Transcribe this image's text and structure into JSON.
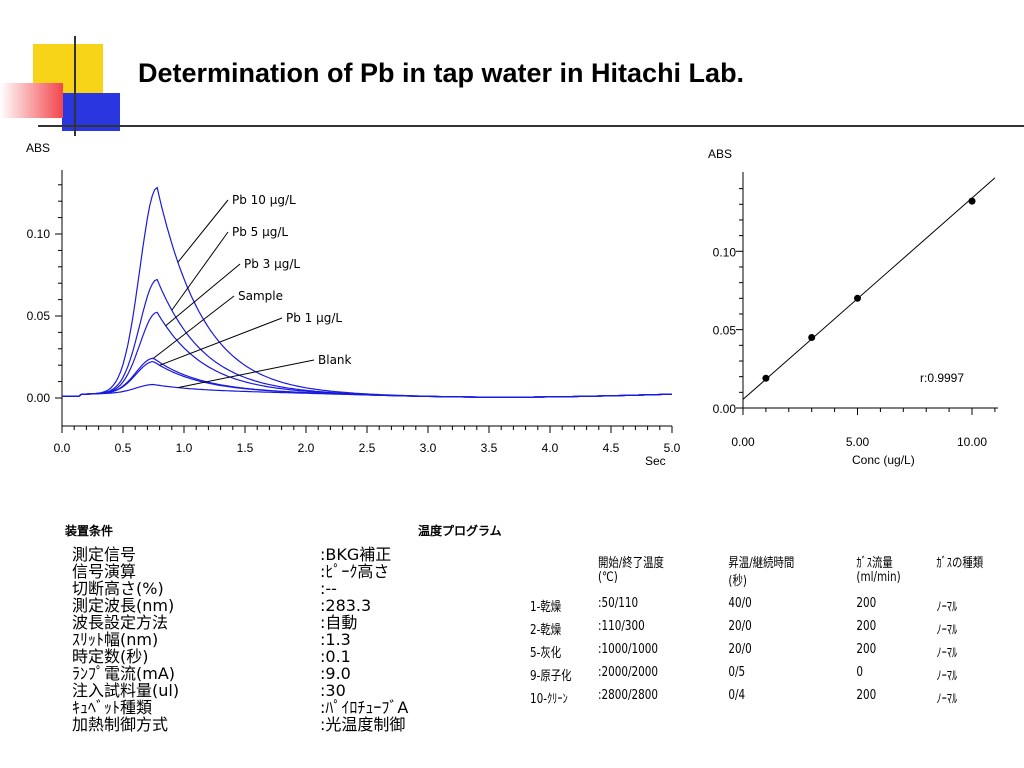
{
  "slide_title": "Determination of Pb in tap water in Hitachi Lab.",
  "colors": {
    "curve": "#1a1add",
    "accent_yellow": "#f7d417",
    "accent_red": "#f2464c",
    "accent_blue": "#2a37e0",
    "rule": "#333333"
  },
  "chart_data": [
    {
      "type": "line",
      "ylabel": "ABS",
      "xlabel": "Sec",
      "xlim": [
        0,
        5.0
      ],
      "ylim": [
        0,
        0.13
      ],
      "x_ticks": [
        "0.0",
        "0.5",
        "1.0",
        "1.5",
        "2.0",
        "2.5",
        "3.0",
        "3.5",
        "4.0",
        "4.5",
        "5.0"
      ],
      "y_ticks": [
        "0.10",
        "0.05",
        "0.00"
      ],
      "series": [
        {
          "name": "Pb 10 μg/L",
          "peak_time": 0.78,
          "peak_abs": 0.127
        },
        {
          "name": "Pb  5 μg/L",
          "peak_time": 0.78,
          "peak_abs": 0.071
        },
        {
          "name": "Pb 3 μg/L",
          "peak_time": 0.78,
          "peak_abs": 0.051
        },
        {
          "name": "Sample",
          "peak_time": 0.75,
          "peak_abs": 0.023
        },
        {
          "name": "Pb 1 μg/L",
          "peak_time": 0.75,
          "peak_abs": 0.021
        },
        {
          "name": "Blank",
          "peak_time": 0.75,
          "peak_abs": 0.007
        }
      ]
    },
    {
      "type": "scatter",
      "ylabel": "ABS",
      "xlabel": "Conc (ug/L)",
      "xlim": [
        0,
        11
      ],
      "ylim": [
        0,
        0.14
      ],
      "x_ticks": [
        "0.00",
        "5.00",
        "10.00"
      ],
      "y_ticks": [
        "0.10",
        "0.05",
        "0.00"
      ],
      "points": [
        {
          "x": 1,
          "y": 0.019
        },
        {
          "x": 3,
          "y": 0.045
        },
        {
          "x": 5,
          "y": 0.07
        },
        {
          "x": 10,
          "y": 0.132
        }
      ],
      "fit_line": {
        "intercept": 0.0055,
        "slope": 0.01285
      },
      "annotation": "r:0.9997"
    }
  ],
  "conditions": {
    "heading": "装置条件",
    "rows": [
      {
        "key": "測定信号",
        "value": ":BKG補正"
      },
      {
        "key": "信号演算",
        "value": ":ﾋﾟｰｸ高さ"
      },
      {
        "key": "切断高さ(%)",
        "value": ":--"
      },
      {
        "key": "測定波長(nm)",
        "value": ":283.3"
      },
      {
        "key": "波長設定方法",
        "value": ":自動"
      },
      {
        "key": "ｽﾘｯﾄ幅(nm)",
        "value": ":1.3"
      },
      {
        "key": "時定数(秒)",
        "value": ":0.1"
      },
      {
        "key": "ﾗﾝﾌﾟ電流(mA)",
        "value": ":9.0"
      },
      {
        "key": "注入試料量(ul)",
        "value": ":30"
      },
      {
        "key": "ｷｭﾍﾞｯﾄ種類",
        "value": ":ﾊﾟｲﾛﾁｭｰﾌﾞA"
      },
      {
        "key": "加熱制御方式",
        "value": ":光温度制御"
      }
    ]
  },
  "temp_program": {
    "heading": "温度プログラム",
    "headers_line1": [
      "",
      "開始/終了温度",
      "昇温/継続時間",
      "ｶﾞｽ流量",
      "ｶﾞｽの種類"
    ],
    "headers_line2": [
      "",
      "(℃)",
      "(秒)",
      "(ml/min)",
      ""
    ],
    "rows": [
      [
        "1-乾燥",
        ":50/110",
        "40/0",
        "200",
        "ﾉｰﾏﾙ"
      ],
      [
        "2-乾燥",
        ":110/300",
        "20/0",
        "200",
        "ﾉｰﾏﾙ"
      ],
      [
        "5-灰化",
        ":1000/1000",
        "20/0",
        "200",
        "ﾉｰﾏﾙ"
      ],
      [
        "9-原子化",
        ":2000/2000",
        "0/5",
        "0",
        "ﾉｰﾏﾙ"
      ],
      [
        "10-ｸﾘｰﾝ",
        ":2800/2800",
        "0/4",
        "200",
        "ﾉｰﾏﾙ"
      ]
    ]
  }
}
